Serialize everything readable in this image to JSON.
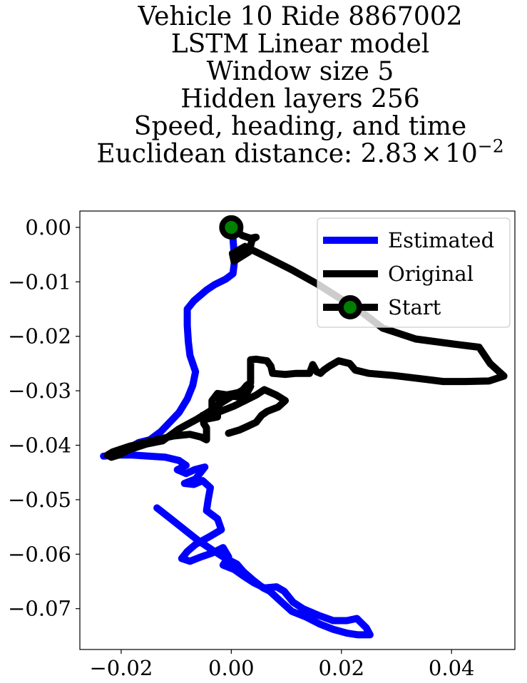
{
  "chart_data": {
    "type": "line",
    "title_lines": [
      "Vehicle 10 Ride 8867002",
      "LSTM Linear model",
      "Window size 5",
      "Hidden layers 256",
      "Speed, heading, and time"
    ],
    "title_metric_label": "Euclidean distance: 2.83",
    "title_metric_times": "×",
    "title_metric_base": "10",
    "title_metric_exponent": "−2",
    "xlim": [
      -0.0275,
      0.0515
    ],
    "ylim": [
      -0.0775,
      0.003
    ],
    "xticks": [
      -0.02,
      0.0,
      0.02,
      0.04
    ],
    "xtick_labels": [
      "−0.02",
      "0.00",
      "0.02",
      "0.04"
    ],
    "yticks": [
      0.0,
      -0.01,
      -0.02,
      -0.03,
      -0.04,
      -0.05,
      -0.06,
      -0.07
    ],
    "ytick_labels": [
      "0.00",
      "−0.01",
      "−0.02",
      "−0.03",
      "−0.04",
      "−0.05",
      "−0.06",
      "−0.07"
    ],
    "grid": false,
    "legend_position": "upper right",
    "series": [
      {
        "name": "Estimated",
        "color": "#0000ff",
        "points": [
          [
            0.0003,
            -0.002
          ],
          [
            0.0006,
            -0.006
          ],
          [
            0.0003,
            -0.0085
          ],
          [
            -0.001,
            -0.0095
          ],
          [
            -0.003,
            -0.0105
          ],
          [
            -0.0045,
            -0.0115
          ],
          [
            -0.0068,
            -0.0135
          ],
          [
            -0.008,
            -0.015
          ],
          [
            -0.008,
            -0.018
          ],
          [
            -0.0078,
            -0.021
          ],
          [
            -0.0075,
            -0.0235
          ],
          [
            -0.0065,
            -0.0265
          ],
          [
            -0.007,
            -0.029
          ],
          [
            -0.008,
            -0.0315
          ],
          [
            -0.0095,
            -0.034
          ],
          [
            -0.0112,
            -0.0358
          ],
          [
            -0.0128,
            -0.0375
          ],
          [
            -0.0148,
            -0.039
          ],
          [
            -0.0168,
            -0.0395
          ],
          [
            -0.019,
            -0.0408
          ],
          [
            -0.0205,
            -0.0418
          ],
          [
            -0.0232,
            -0.042
          ],
          [
            -0.021,
            -0.0418
          ],
          [
            -0.018,
            -0.0418
          ],
          [
            -0.015,
            -0.042
          ],
          [
            -0.012,
            -0.0422
          ],
          [
            -0.0095,
            -0.0428
          ],
          [
            -0.0082,
            -0.0437
          ],
          [
            -0.0098,
            -0.0445
          ],
          [
            -0.0082,
            -0.0452
          ],
          [
            -0.0067,
            -0.0445
          ],
          [
            -0.0048,
            -0.044
          ],
          [
            -0.0065,
            -0.0462
          ],
          [
            -0.0085,
            -0.047
          ],
          [
            -0.0068,
            -0.0472
          ],
          [
            -0.0052,
            -0.0465
          ],
          [
            -0.0038,
            -0.0478
          ],
          [
            -0.0042,
            -0.05
          ],
          [
            -0.0045,
            -0.052
          ],
          [
            -0.0025,
            -0.0535
          ],
          [
            -0.0018,
            -0.0555
          ],
          [
            -0.004,
            -0.0568
          ],
          [
            -0.0065,
            -0.0582
          ],
          [
            -0.008,
            -0.0595
          ],
          [
            -0.009,
            -0.0608
          ],
          [
            -0.0075,
            -0.0613
          ],
          [
            -0.0055,
            -0.0605
          ],
          [
            -0.0035,
            -0.0598
          ],
          [
            -0.0015,
            -0.0588
          ],
          [
            -0.0005,
            -0.0605
          ],
          [
            -0.0015,
            -0.062
          ],
          [
            0.0005,
            -0.0628
          ],
          [
            0.0022,
            -0.064
          ],
          [
            0.004,
            -0.0652
          ],
          [
            0.006,
            -0.0662
          ],
          [
            0.0082,
            -0.066
          ],
          [
            0.0096,
            -0.0668
          ],
          [
            0.0112,
            -0.0688
          ],
          [
            0.013,
            -0.07
          ],
          [
            0.016,
            -0.0713
          ],
          [
            0.0185,
            -0.0722
          ],
          [
            0.021,
            -0.0722
          ],
          [
            0.0228,
            -0.0718
          ],
          [
            0.0245,
            -0.0735
          ],
          [
            0.0252,
            -0.0748
          ],
          [
            0.023,
            -0.0748
          ],
          [
            0.021,
            -0.0745
          ],
          [
            0.0185,
            -0.0738
          ],
          [
            0.016,
            -0.0728
          ],
          [
            0.0135,
            -0.0715
          ],
          [
            0.011,
            -0.0705
          ],
          [
            0.0088,
            -0.0685
          ],
          [
            0.007,
            -0.0668
          ],
          [
            0.0058,
            -0.0662
          ],
          [
            0.004,
            -0.0648
          ],
          [
            0.0022,
            -0.0632
          ],
          [
            0.001,
            -0.0618
          ],
          [
            -0.001,
            -0.0608
          ],
          [
            -0.0035,
            -0.0592
          ],
          [
            -0.006,
            -0.0575
          ],
          [
            -0.0085,
            -0.0555
          ],
          [
            -0.011,
            -0.0535
          ],
          [
            -0.0135,
            -0.0515
          ]
        ]
      },
      {
        "name": "Original",
        "color": "#000000",
        "points": [
          [
            0.0,
            0.0
          ],
          [
            0.002,
            -0.0015
          ],
          [
            0.0035,
            -0.002
          ],
          [
            0.0045,
            -0.0018
          ],
          [
            0.0038,
            -0.0022
          ],
          [
            0.0032,
            -0.0045
          ],
          [
            0.0005,
            -0.0062
          ],
          [
            0.0002,
            -0.0048
          ],
          [
            0.0025,
            -0.0035
          ],
          [
            0.0065,
            -0.0055
          ],
          [
            0.011,
            -0.0078
          ],
          [
            0.0158,
            -0.0105
          ],
          [
            0.02,
            -0.0132
          ],
          [
            0.024,
            -0.0158
          ],
          [
            0.0275,
            -0.0185
          ],
          [
            0.0335,
            -0.0205
          ],
          [
            0.041,
            -0.0215
          ],
          [
            0.045,
            -0.022
          ],
          [
            0.047,
            -0.025
          ],
          [
            0.0495,
            -0.0273
          ],
          [
            0.0468,
            -0.0282
          ],
          [
            0.0425,
            -0.0283
          ],
          [
            0.0385,
            -0.0283
          ],
          [
            0.0345,
            -0.0278
          ],
          [
            0.0295,
            -0.0272
          ],
          [
            0.025,
            -0.0268
          ],
          [
            0.0225,
            -0.0262
          ],
          [
            0.0215,
            -0.025
          ],
          [
            0.0195,
            -0.0245
          ],
          [
            0.0178,
            -0.0255
          ],
          [
            0.0168,
            -0.0262
          ],
          [
            0.0162,
            -0.0268
          ],
          [
            0.0155,
            -0.0265
          ],
          [
            0.0148,
            -0.0252
          ],
          [
            0.0142,
            -0.0268
          ],
          [
            0.0118,
            -0.0268
          ],
          [
            0.0098,
            -0.027
          ],
          [
            0.0075,
            -0.0268
          ],
          [
            0.0072,
            -0.0255
          ],
          [
            0.0065,
            -0.0245
          ],
          [
            0.0045,
            -0.0242
          ],
          [
            0.0035,
            -0.0243
          ],
          [
            0.0035,
            -0.026
          ],
          [
            0.0035,
            -0.0285
          ],
          [
            0.0028,
            -0.029
          ],
          [
            0.0018,
            -0.0302
          ],
          [
            0.0005,
            -0.0305
          ],
          [
            -0.001,
            -0.0308
          ],
          [
            -0.002,
            -0.0318
          ],
          [
            -0.0025,
            -0.033
          ],
          [
            -0.0025,
            -0.0348
          ],
          [
            -0.0045,
            -0.0352
          ],
          [
            -0.0052,
            -0.0345
          ],
          [
            -0.005,
            -0.036
          ],
          [
            -0.0045,
            -0.0368
          ],
          [
            -0.0045,
            -0.0378
          ],
          [
            -0.0045,
            -0.039
          ],
          [
            -0.0055,
            -0.0385
          ],
          [
            -0.0075,
            -0.038
          ],
          [
            -0.0105,
            -0.0383
          ],
          [
            -0.0145,
            -0.0392
          ],
          [
            -0.0185,
            -0.0402
          ],
          [
            -0.0215,
            -0.0412
          ],
          [
            -0.0225,
            -0.0418
          ],
          [
            -0.0218,
            -0.0422
          ],
          [
            -0.0205,
            -0.0418
          ],
          [
            -0.0185,
            -0.0408
          ],
          [
            -0.0155,
            -0.0398
          ],
          [
            -0.0125,
            -0.0392
          ],
          [
            -0.0095,
            -0.037
          ],
          [
            -0.0062,
            -0.0352
          ],
          [
            -0.0035,
            -0.0335
          ],
          [
            -0.0015,
            -0.032
          ],
          [
            0.0005,
            -0.0308
          ],
          [
            0.0022,
            -0.0298
          ],
          [
            0.0035,
            -0.0292
          ],
          [
            0.0028,
            -0.0305
          ],
          [
            0.0015,
            -0.0312
          ],
          [
            -0.0005,
            -0.0308
          ],
          [
            -0.0025,
            -0.0305
          ],
          [
            -0.0035,
            -0.0318
          ],
          [
            -0.0035,
            -0.0338
          ],
          [
            -0.002,
            -0.0338
          ],
          [
            0.0005,
            -0.0328
          ],
          [
            0.0025,
            -0.0318
          ],
          [
            0.0045,
            -0.0308
          ],
          [
            0.006,
            -0.0298
          ],
          [
            0.0082,
            -0.0308
          ],
          [
            0.0098,
            -0.0318
          ],
          [
            0.0085,
            -0.033
          ],
          [
            0.0065,
            -0.0338
          ],
          [
            0.0055,
            -0.0345
          ],
          [
            0.0045,
            -0.0358
          ],
          [
            0.003,
            -0.0365
          ],
          [
            0.0015,
            -0.0372
          ],
          [
            -0.0005,
            -0.0378
          ]
        ]
      }
    ],
    "start_point": {
      "name": "Start",
      "x": 0.0,
      "y": 0.0,
      "marker_edge_color": "#000000",
      "marker_face_color": "#008000"
    },
    "legend": [
      {
        "label": "Estimated",
        "color": "#0000ff",
        "style": "line"
      },
      {
        "label": "Original",
        "color": "#000000",
        "style": "line"
      },
      {
        "label": "Start",
        "color": "#000000",
        "style": "line-marker",
        "marker_face_color": "#008000"
      }
    ]
  }
}
